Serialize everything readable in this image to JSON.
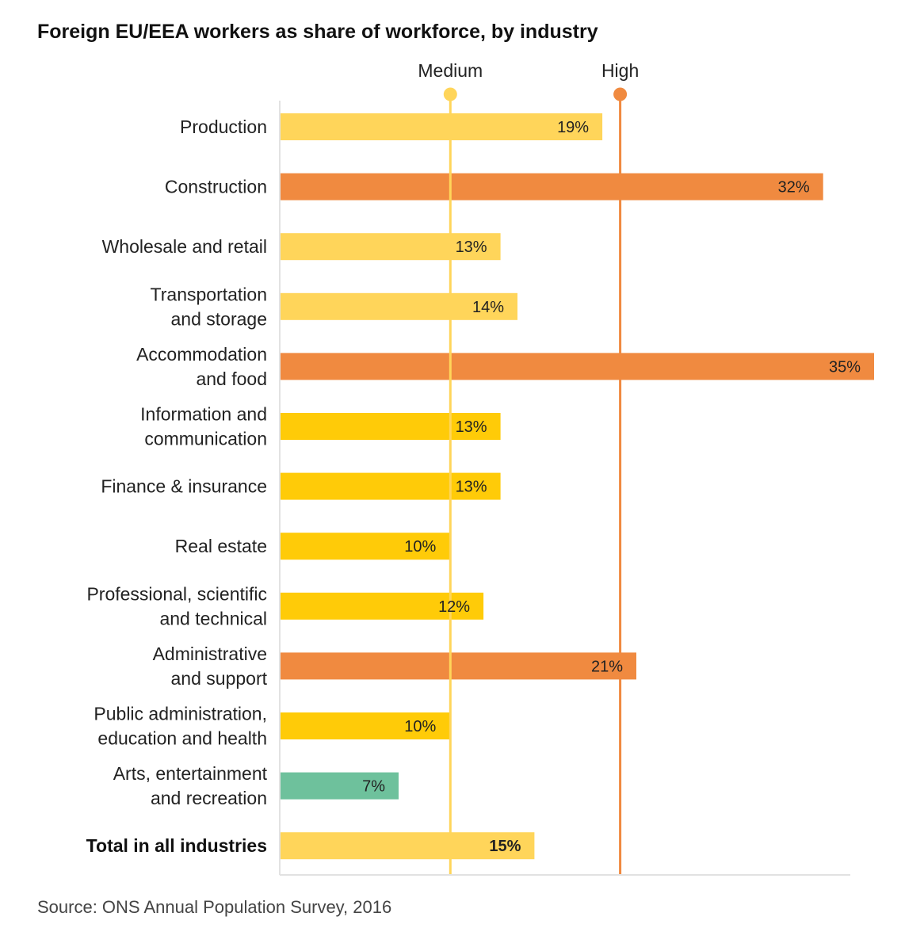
{
  "chart_data": {
    "type": "bar",
    "orientation": "horizontal",
    "title": "Foreign EU/EEA workers as share of workforce, by industry",
    "categories": [
      [
        "Production"
      ],
      [
        "Construction"
      ],
      [
        "Wholesale and retail"
      ],
      [
        "Transportation",
        "and storage"
      ],
      [
        "Accommodation",
        "and food"
      ],
      [
        "Information and",
        "communication"
      ],
      [
        "Finance & insurance"
      ],
      [
        "Real estate"
      ],
      [
        "Professional, scientific",
        "and technical"
      ],
      [
        "Administrative",
        "and support"
      ],
      [
        "Public administration,",
        "education and health"
      ],
      [
        "Arts, entertainment",
        "and recreation"
      ],
      [
        "Total in all industries"
      ]
    ],
    "values": [
      19,
      32,
      13,
      14,
      35,
      13,
      13,
      10,
      12,
      21,
      10,
      7,
      15
    ],
    "value_labels": [
      "19%",
      "32%",
      "13%",
      "14%",
      "35%",
      "13%",
      "13%",
      "10%",
      "12%",
      "21%",
      "10%",
      "7%",
      "15%"
    ],
    "bar_colors": [
      "#ffd55a",
      "#f08a40",
      "#ffd55a",
      "#ffd55a",
      "#f08a40",
      "#ffcb08",
      "#ffcb08",
      "#ffcb08",
      "#ffcb08",
      "#f08a40",
      "#ffcb08",
      "#6ec19c",
      "#ffd55a"
    ],
    "total_index": 12,
    "thresholds": [
      {
        "name": "Medium",
        "value": 10,
        "color": "#ffd55a"
      },
      {
        "name": "High",
        "value": 20,
        "color": "#f08a40"
      }
    ],
    "xlim": [
      0,
      35
    ],
    "grid": false,
    "xlabel": "",
    "ylabel": ""
  },
  "source": "Source: ONS Annual Population Survey, 2016"
}
